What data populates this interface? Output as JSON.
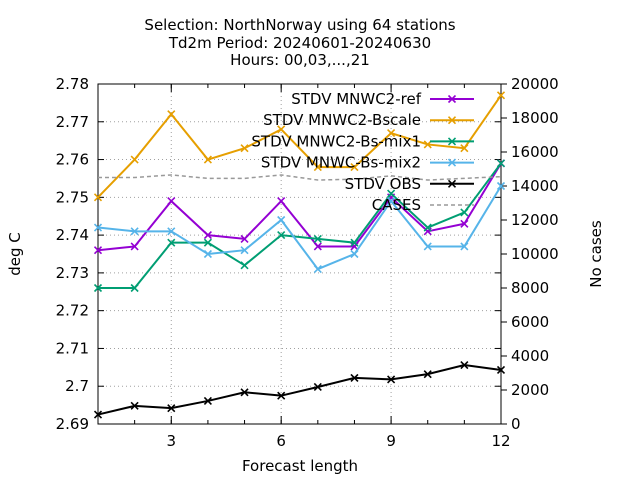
{
  "chart_data": {
    "type": "line",
    "title_lines": [
      "Selection: NorthNorway using    64 stations",
      "Td2m   Period: 20240601-20240630",
      "Hours: 00,03,...,21"
    ],
    "xlabel": "Forecast length",
    "ylabel": "deg C",
    "y2label": "No cases",
    "xlim": [
      1,
      12
    ],
    "ylim": [
      2.69,
      2.78
    ],
    "y2lim": [
      0,
      20000
    ],
    "x_ticks": [
      3,
      6,
      9,
      12
    ],
    "y_ticks": [
      2.69,
      2.7,
      2.71,
      2.72,
      2.73,
      2.74,
      2.75,
      2.76,
      2.77,
      2.78
    ],
    "y_tick_labels": [
      "2.69",
      "2.7",
      "2.71",
      "2.72",
      "2.73",
      "2.74",
      "2.75",
      "2.76",
      "2.77",
      "2.78"
    ],
    "y2_ticks": [
      0,
      2000,
      4000,
      6000,
      8000,
      10000,
      12000,
      14000,
      16000,
      18000,
      20000
    ],
    "legend_position": "top-right",
    "x": [
      1,
      2,
      3,
      4,
      5,
      6,
      7,
      8,
      9,
      10,
      11,
      12
    ],
    "series": [
      {
        "name": "STDV MNWC2-ref",
        "color": "#9400d3",
        "axis": "y",
        "marker": "x",
        "values": [
          2.736,
          2.737,
          2.749,
          2.74,
          2.739,
          2.749,
          2.737,
          2.737,
          2.75,
          2.741,
          2.743,
          2.759
        ]
      },
      {
        "name": "STDV MNWC2-Bscale",
        "color": "#e69f00",
        "axis": "y",
        "marker": "x",
        "values": [
          2.75,
          2.76,
          2.772,
          2.76,
          2.763,
          2.768,
          2.758,
          2.758,
          2.767,
          2.764,
          2.763,
          2.777
        ]
      },
      {
        "name": "STDV MNWC2-Bs-mix1",
        "color": "#009e73",
        "axis": "y",
        "marker": "x",
        "values": [
          2.726,
          2.726,
          2.738,
          2.738,
          2.732,
          2.74,
          2.739,
          2.738,
          2.751,
          2.742,
          2.746,
          2.759
        ]
      },
      {
        "name": "STDV MNWC-Bs-mix2",
        "color": "#56b4e9",
        "axis": "y",
        "marker": "x",
        "values": [
          2.742,
          2.741,
          2.741,
          2.735,
          2.736,
          2.744,
          2.731,
          2.735,
          2.749,
          2.737,
          2.737,
          2.753
        ]
      },
      {
        "name": "STDV OBS",
        "color": "#000000",
        "axis": "y",
        "marker": "x",
        "values": [
          2.6925,
          2.6948,
          2.6942,
          2.6961,
          2.6984,
          2.6975,
          2.6998,
          2.7022,
          2.7018,
          2.7032,
          2.7056,
          2.7043
        ]
      },
      {
        "name": "CASES",
        "color": "#999999",
        "axis": "y2",
        "dashed": true,
        "values": [
          14500,
          14500,
          14650,
          14450,
          14450,
          14650,
          14350,
          14400,
          14600,
          14350,
          14450,
          14550
        ]
      }
    ]
  }
}
